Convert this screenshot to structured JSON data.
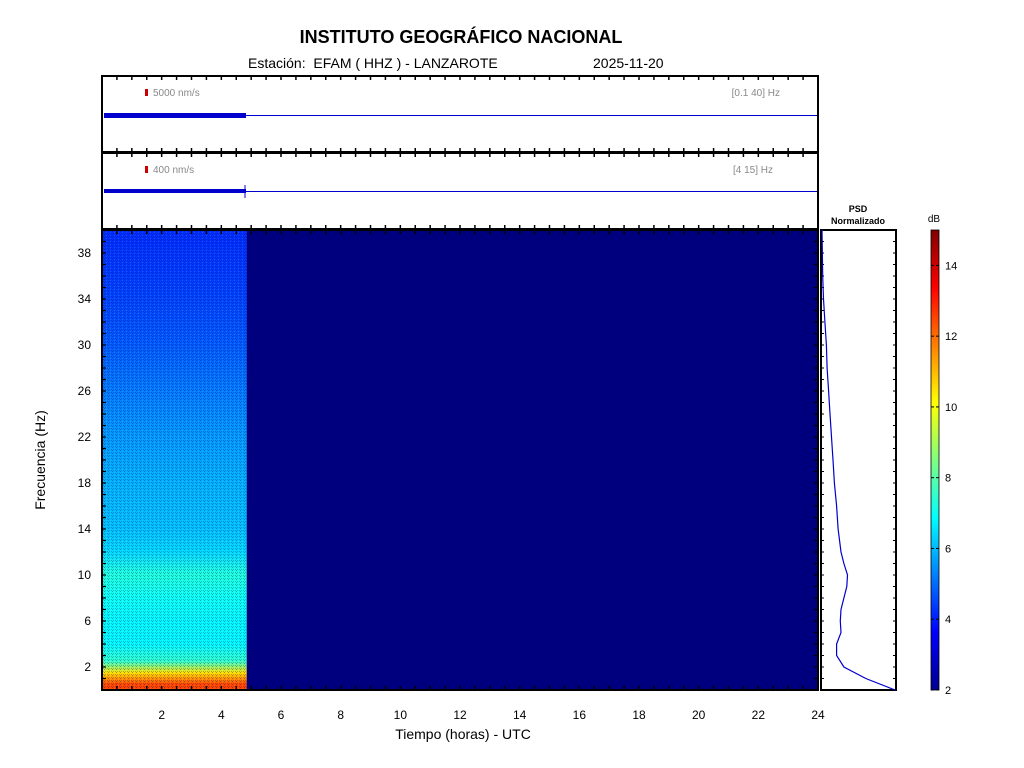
{
  "header": {
    "title": "INSTITUTO GEOGRÁFICO NACIONAL",
    "station_label": "Estación:  EFAM ( HHZ ) - LANZAROTE",
    "date": "2025-11-20"
  },
  "traces": [
    {
      "scale_label": "5000 nm/s",
      "filter_label": "[0.1 40] Hz"
    },
    {
      "scale_label": "400 nm/s",
      "filter_label": "[4 15] Hz"
    }
  ],
  "psd": {
    "title_line1": "PSD",
    "title_line2": "Normalizado"
  },
  "colorbar": {
    "unit": "dB",
    "min": 2,
    "max": 15,
    "ticks": [
      2,
      4,
      6,
      8,
      10,
      12,
      14
    ]
  },
  "colors": {
    "trace": "#0000cc",
    "background": "#00007f",
    "scale_mark": "#cc0000"
  },
  "chart_data": {
    "type": "heatmap",
    "xlabel": "Tiempo (horas) - UTC",
    "ylabel": "Frecuencia  (Hz)",
    "xlim": [
      0,
      24
    ],
    "ylim": [
      0,
      40
    ],
    "xticks": [
      2,
      4,
      6,
      8,
      10,
      12,
      14,
      16,
      18,
      20,
      22,
      24
    ],
    "yticks": [
      2,
      6,
      10,
      14,
      18,
      22,
      26,
      30,
      34,
      38
    ],
    "data_end_hour": 4.85,
    "spectrogram_levels_db": {
      "freq_hz": [
        0.5,
        1.5,
        2.5,
        4,
        6,
        8,
        10,
        12,
        14,
        18,
        22,
        26,
        30,
        34,
        38,
        40
      ],
      "db": [
        12.5,
        10.5,
        7.5,
        6.8,
        6.8,
        7.0,
        7.3,
        6.4,
        6.1,
        5.9,
        5.6,
        5.2,
        4.8,
        4.5,
        4.3,
        4.2
      ]
    },
    "psd_normalized": {
      "freq_hz": [
        0,
        1,
        2,
        3,
        4,
        5,
        6,
        7,
        8,
        9,
        10,
        11,
        12,
        14,
        16,
        18,
        20,
        22,
        24,
        26,
        28,
        30,
        32,
        34,
        36,
        40
      ],
      "value": [
        1.0,
        0.6,
        0.3,
        0.2,
        0.2,
        0.26,
        0.25,
        0.26,
        0.3,
        0.34,
        0.35,
        0.3,
        0.26,
        0.22,
        0.2,
        0.17,
        0.15,
        0.13,
        0.11,
        0.09,
        0.07,
        0.06,
        0.04,
        0.02,
        0.01,
        0.0
      ]
    }
  }
}
